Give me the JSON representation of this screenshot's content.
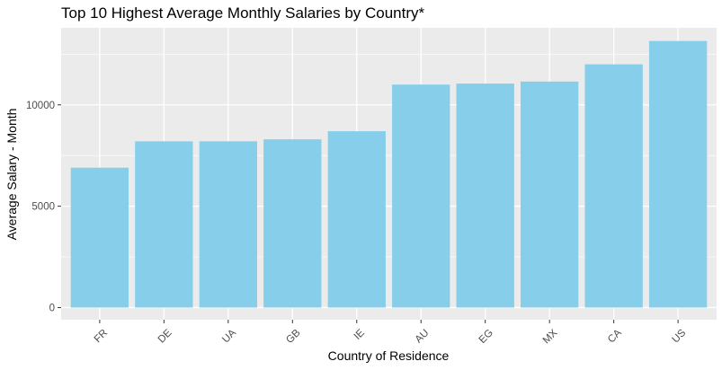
{
  "chart_data": {
    "type": "bar",
    "title": "Top 10 Highest Average Monthly Salaries by Country*",
    "xlabel": "Country of Residence",
    "ylabel": "Average Salary - Month",
    "categories": [
      "FR",
      "DE",
      "UA",
      "GB",
      "IE",
      "AU",
      "EG",
      "MX",
      "CA",
      "US"
    ],
    "values": [
      6900,
      8200,
      8200,
      8300,
      8700,
      11000,
      11050,
      11150,
      12000,
      13150
    ],
    "yticks": [
      0,
      5000,
      10000
    ],
    "ytick_labels": [
      "0",
      "5000",
      "10000"
    ],
    "ylim": [
      -600,
      13800
    ],
    "grid": true,
    "colors": {
      "bar": "#87CEEB",
      "panel": "#EBEBEB",
      "grid": "#FFFFFF",
      "tick_text": "#4D4D4D",
      "text": "#000000"
    }
  }
}
